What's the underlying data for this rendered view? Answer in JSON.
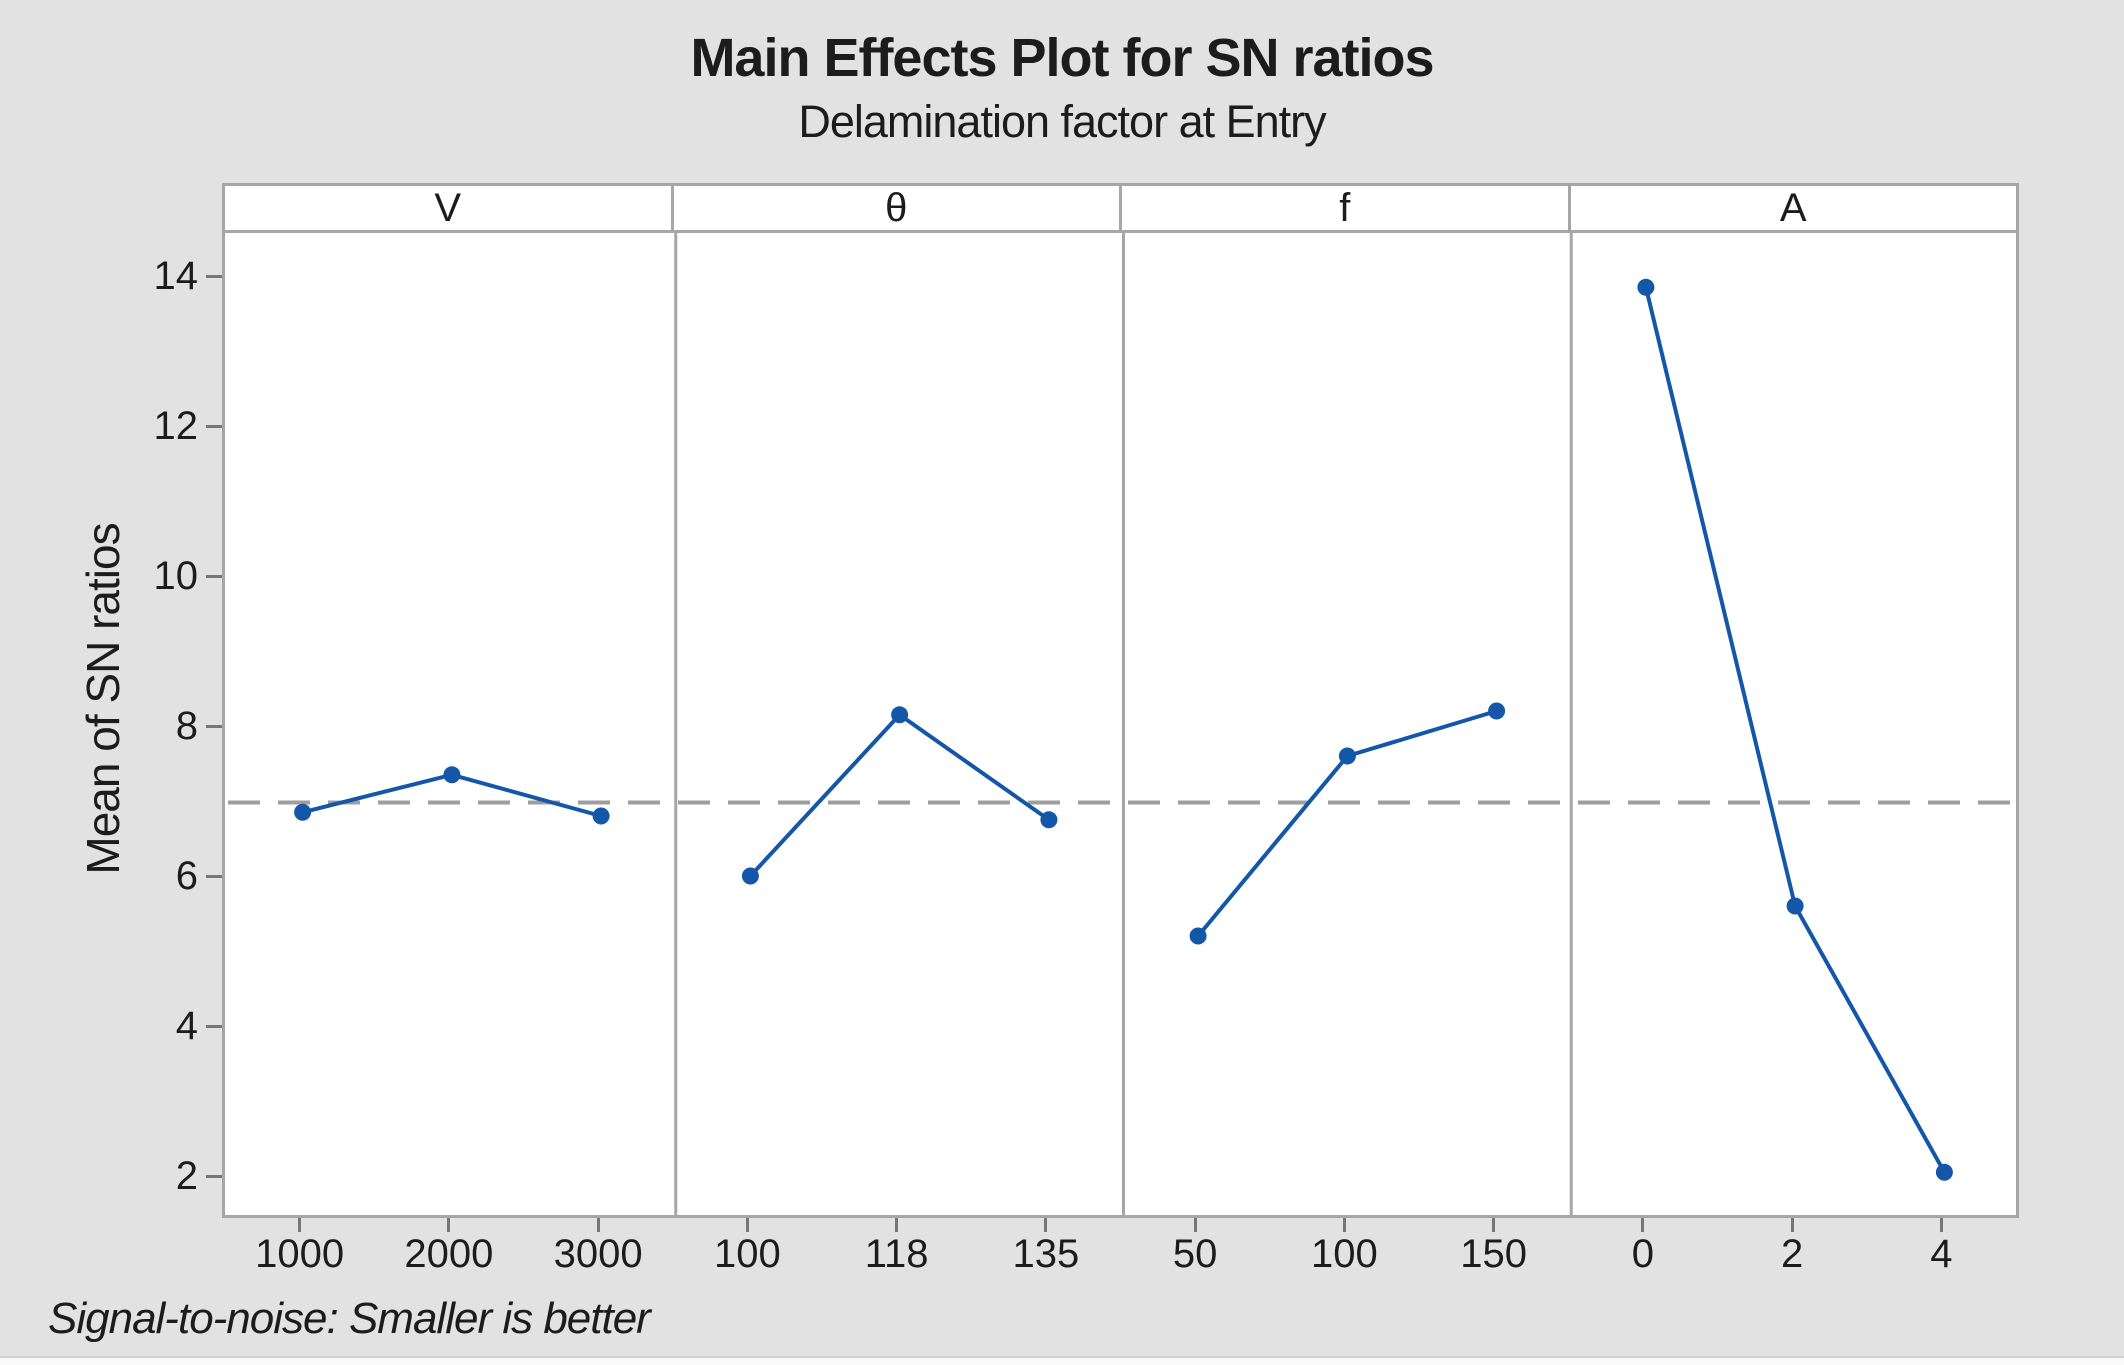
{
  "figure": {
    "title": "Main Effects Plot for SN ratios",
    "subtitle": "Delamination factor at Entry",
    "footnote": "Signal-to-noise: Smaller is better",
    "y_axis_title": "Mean of SN ratios"
  },
  "colors": {
    "background": "#e2e2e2",
    "panel_background": "#ffffff",
    "panel_border": "#a6a6a6",
    "series_blue": "#1457a8",
    "reference_line_gray": "#9e9e9e",
    "tick_mark_gray": "#767676",
    "text": "#1c1c1c"
  },
  "chart_data": {
    "type": "line",
    "title": "Main Effects Plot for SN ratios",
    "subtitle": "Delamination factor at Entry",
    "ylabel": "Mean of SN ratios",
    "xlabel": "",
    "footnote": "Signal-to-noise: Smaller is better",
    "ylim": [
      1.5,
      14.6
    ],
    "yticks": [
      2,
      4,
      6,
      8,
      10,
      12,
      14
    ],
    "grid": false,
    "legend": false,
    "marker": "circle",
    "reference_line": {
      "value": 6.98,
      "style": "dashed",
      "meaning": "overall mean of SN ratios"
    },
    "panels": [
      {
        "factor": "V",
        "categories": [
          "1000",
          "2000",
          "3000"
        ],
        "values": [
          6.85,
          7.35,
          6.8
        ]
      },
      {
        "factor": "θ",
        "categories": [
          "100",
          "118",
          "135"
        ],
        "values": [
          6.0,
          8.15,
          6.75
        ]
      },
      {
        "factor": "f",
        "categories": [
          "50",
          "100",
          "150"
        ],
        "values": [
          5.2,
          7.6,
          8.2
        ]
      },
      {
        "factor": "A",
        "categories": [
          "0",
          "2",
          "4"
        ],
        "values": [
          13.85,
          5.6,
          2.05
        ]
      }
    ]
  }
}
